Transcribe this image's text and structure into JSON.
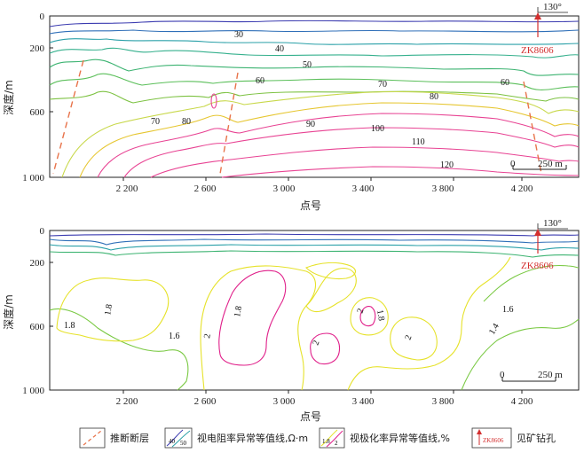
{
  "chart_data": [
    {
      "type": "contour",
      "panel": "top",
      "xlabel": "点号",
      "ylabel": "深度/m",
      "xticks": [
        "2 200",
        "2 600",
        "3 000",
        "3 400",
        "3 800",
        "4 200"
      ],
      "yticks": [
        "0",
        "200",
        "600",
        "1 000"
      ],
      "contour_labels": [
        "30",
        "40",
        "50",
        "60",
        "70",
        "80",
        "90",
        "100",
        "110",
        "120",
        "60",
        "70",
        "80"
      ],
      "orientation_label": "130°",
      "borehole_label": "ZK8606",
      "scalebar": {
        "left": "0",
        "right": "250 m"
      }
    },
    {
      "type": "contour",
      "panel": "bottom",
      "xlabel": "点号",
      "ylabel": "深度/m",
      "xticks": [
        "2 200",
        "2 600",
        "3 000",
        "3 400",
        "3 800",
        "4 200"
      ],
      "yticks": [
        "0",
        "200",
        "600",
        "1 000"
      ],
      "contour_labels": [
        "1.8",
        "1.8",
        "1.6",
        "2",
        "1.8",
        "2",
        "2",
        "1.8",
        "2",
        "1.6",
        "1.4"
      ],
      "orientation_label": "130°",
      "borehole_label": "ZK8606",
      "scalebar": {
        "left": "0",
        "right": "250 m"
      }
    }
  ],
  "legend": {
    "items": [
      {
        "label": "推断断层",
        "symbol": "dashed-fault"
      },
      {
        "label": "视电阻率异常等值线,Ω·m",
        "symbol": "resistivity-contours",
        "sample": [
          "40",
          "50"
        ]
      },
      {
        "label": "视极化率异常等值线,%",
        "symbol": "polarizability-contours",
        "sample": [
          "1.8",
          "2"
        ]
      },
      {
        "label": "见矿钻孔",
        "symbol": "borehole",
        "sample": [
          "ZK8606"
        ]
      }
    ]
  },
  "colors": {
    "fault": "#e8734a",
    "c30": "#3b3bb0",
    "c40": "#2aa0a8",
    "c50": "#3cb371",
    "c60": "#7dc242",
    "c70": "#c8d84a",
    "c80": "#e6c630",
    "c90": "#e84393",
    "red": "#d32f2f",
    "pol_low": "#7ac943",
    "pol_mid": "#e6e22a",
    "pol_high": "#e0208a"
  }
}
